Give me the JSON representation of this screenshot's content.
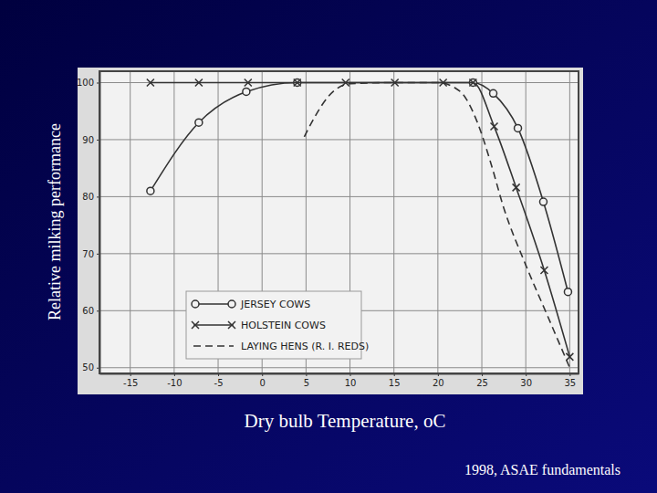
{
  "chart_data": {
    "type": "line",
    "x_label": "Dry bulb Temperature, oC",
    "y_label": "Relative milking performance",
    "annotations": [
      "1998, ASAE fundamentals"
    ],
    "xlim": [
      -18.5,
      36
    ],
    "ylim": [
      49,
      102
    ],
    "xticks": [
      -15,
      -10,
      -5,
      0,
      5,
      10,
      15,
      20,
      25,
      30,
      35
    ],
    "yticks": [
      50,
      60,
      70,
      80,
      90,
      100
    ],
    "grid": true,
    "legend": "lower left",
    "series": [
      {
        "name": "JERSEY COWS",
        "color": "#333333",
        "marker": "circle",
        "line_style": "solid",
        "x": [
          -12.7,
          -7.2,
          -1.8,
          4,
          24,
          26.3,
          29.1,
          32,
          34.8
        ],
        "values": [
          81,
          93,
          98.4,
          100,
          100,
          98.1,
          92,
          79.1,
          63.3
        ]
      },
      {
        "name": "HOLSTEIN COWS",
        "color": "#333333",
        "marker": "x",
        "line_style": "solid",
        "x": [
          -12.7,
          -7.2,
          -1.6,
          4,
          9.5,
          15.1,
          20.6,
          24,
          26.4,
          28.9,
          32.1,
          35
        ],
        "values": [
          100,
          100,
          100,
          100,
          100,
          100,
          100,
          100,
          92.3,
          81.6,
          67.1,
          51.9
        ]
      },
      {
        "name": "LAYING HENS (R. I. REDS)",
        "color": "#333333",
        "marker": "none",
        "line_style": "dashed",
        "x": [
          4.8,
          6,
          7.5,
          10,
          15,
          20,
          22.5,
          24.5,
          26,
          27.5,
          30,
          32.5,
          35
        ],
        "values": [
          90.5,
          94,
          97.5,
          99.8,
          100,
          100,
          98.5,
          93,
          86,
          78,
          68,
          59,
          50
        ]
      }
    ]
  }
}
